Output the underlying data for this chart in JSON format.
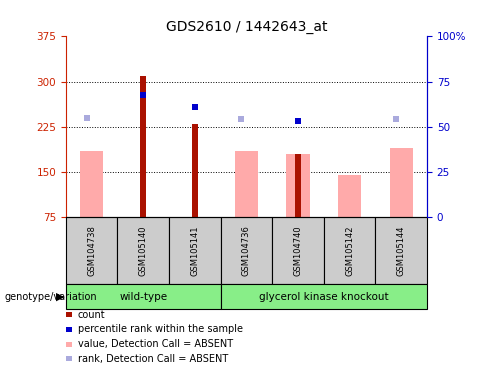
{
  "title": "GDS2610 / 1442643_at",
  "samples": [
    "GSM104738",
    "GSM105140",
    "GSM105141",
    "GSM104736",
    "GSM104740",
    "GSM105142",
    "GSM105144"
  ],
  "wt_indices": [
    0,
    1,
    2
  ],
  "ko_indices": [
    3,
    4,
    5,
    6
  ],
  "ymin": 75,
  "ymax": 375,
  "yticks_left": [
    75,
    150,
    225,
    300,
    375
  ],
  "yticks_right": [
    0,
    25,
    50,
    75,
    100
  ],
  "left_axis_color": "#cc2200",
  "right_axis_color": "#0000cc",
  "count_bars": [
    null,
    310,
    230,
    null,
    180,
    null,
    null
  ],
  "count_color": "#aa1100",
  "value_absent_bars": [
    185,
    null,
    null,
    185,
    180,
    145,
    190
  ],
  "value_absent_color": "#ffaaaa",
  "rank_absent_dots": [
    240,
    null,
    null,
    238,
    null,
    null,
    238
  ],
  "rank_absent_color": "#aaaadd",
  "percentile_dots": [
    null,
    278,
    258,
    null,
    235,
    null,
    null
  ],
  "percentile_color": "#0000cc",
  "grid_lines": [
    150,
    225,
    300
  ],
  "group_wt_color": "#88ee88",
  "group_ko_color": "#88ee88",
  "group_label_wt": "wild-type",
  "group_label_ko": "glycerol kinase knockout",
  "sample_box_color": "#cccccc",
  "legend_items": [
    {
      "label": "count",
      "color": "#aa1100"
    },
    {
      "label": "percentile rank within the sample",
      "color": "#0000cc"
    },
    {
      "label": "value, Detection Call = ABSENT",
      "color": "#ffaaaa"
    },
    {
      "label": "rank, Detection Call = ABSENT",
      "color": "#aaaadd"
    }
  ],
  "genotype_label": "genotype/variation",
  "title_fontsize": 10,
  "tick_fontsize": 7.5,
  "sample_fontsize": 6,
  "legend_fontsize": 7
}
